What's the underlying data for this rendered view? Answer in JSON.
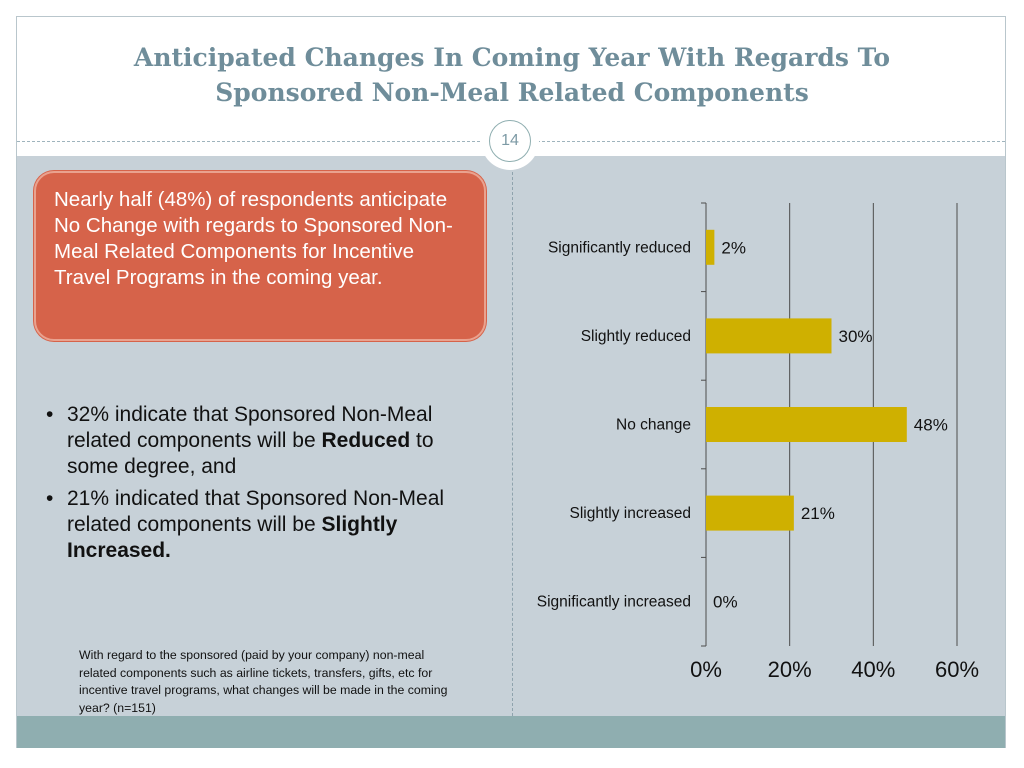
{
  "slide": {
    "title_line1": "Anticipated Changes In Coming Year With Regards To",
    "title_line2": "Sponsored Non-Meal Related Components",
    "page_number": "14"
  },
  "callout": {
    "text": "Nearly half (48%) of respondents anticipate No Change with regards to Sponsored Non-Meal Related Components for Incentive Travel Programs in the coming year."
  },
  "bullets": [
    {
      "dot": "•",
      "before": "32% indicate that Sponsored Non-Meal related components will be ",
      "bold": "Reduced",
      "after": " to some degree, and"
    },
    {
      "dot": "•",
      "before": "21% indicated that Sponsored Non-Meal related components will be ",
      "bold": "Slightly Increased.",
      "after": ""
    }
  ],
  "footnote": "With regard to the sponsored (paid by your company) non-meal related components such as airline tickets, transfers, gifts, etc for  incentive travel programs, what changes  will be made in the coming year?  (n=151)",
  "colors": {
    "title": "#6f8d9a",
    "bar": "#cfb000",
    "callout": "#d6634a",
    "content_bg": "#c7d1d8",
    "footer": "#8faeb0"
  },
  "chart_data": {
    "type": "bar",
    "orientation": "horizontal",
    "categories": [
      "Significantly reduced",
      "Slightly reduced",
      "No change",
      "Slightly increased",
      "Significantly increased"
    ],
    "values": [
      2,
      30,
      48,
      21,
      0
    ],
    "data_labels": [
      "2%",
      "30%",
      "48%",
      "21%",
      "0%"
    ],
    "x_ticks": [
      "0%",
      "20%",
      "40%",
      "60%"
    ],
    "xlim": [
      0,
      60
    ],
    "grid": true,
    "legend": "none"
  }
}
